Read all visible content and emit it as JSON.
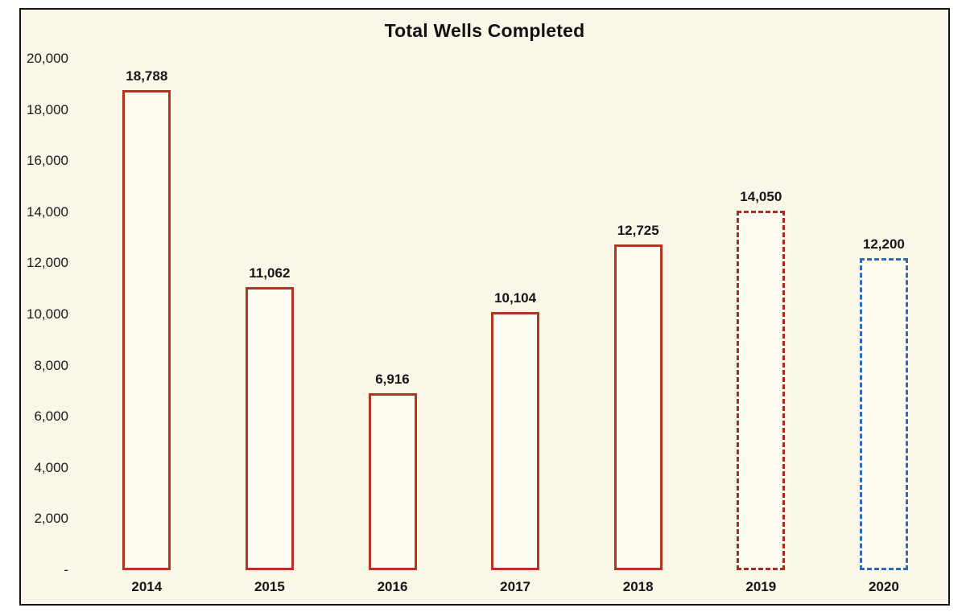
{
  "colors": {
    "page_background": "#FFFFFF",
    "chart_background": "#FAF6E8",
    "bar_fill": "#FFFDF2",
    "frame_border": "#141414",
    "text": "#1A1A1A",
    "solid_red": "#B23422",
    "dashed_red": "#A52E20",
    "dashed_blue": "#2E6DB5"
  },
  "chart_data": {
    "type": "bar",
    "title": "Total Wells Completed",
    "xlabel": "",
    "ylabel": "",
    "categories": [
      "2014",
      "2015",
      "2016",
      "2017",
      "2018",
      "2019",
      "2020"
    ],
    "values": [
      18788,
      11062,
      6916,
      10104,
      12725,
      14050,
      12200
    ],
    "ylim": [
      0,
      20000
    ],
    "grid": false,
    "legend": "none",
    "y_ticks": [
      {
        "value": 20000,
        "label": "20,000"
      },
      {
        "value": 18000,
        "label": "18,000"
      },
      {
        "value": 16000,
        "label": "16,000"
      },
      {
        "value": 14000,
        "label": "14,000"
      },
      {
        "value": 12000,
        "label": "12,000"
      },
      {
        "value": 10000,
        "label": "10,000"
      },
      {
        "value": 8000,
        "label": "8,000"
      },
      {
        "value": 6000,
        "label": "6,000"
      },
      {
        "value": 4000,
        "label": "4,000"
      },
      {
        "value": 2000,
        "label": "2,000"
      },
      {
        "value": 0,
        "label": "-"
      }
    ],
    "bars": [
      {
        "category": "2014",
        "value": 18788,
        "label": "18,788",
        "outline_color": "#B23422",
        "line_style": "solid"
      },
      {
        "category": "2015",
        "value": 11062,
        "label": "11,062",
        "outline_color": "#B23422",
        "line_style": "solid"
      },
      {
        "category": "2016",
        "value": 6916,
        "label": "6,916",
        "outline_color": "#B23422",
        "line_style": "solid"
      },
      {
        "category": "2017",
        "value": 10104,
        "label": "10,104",
        "outline_color": "#B23422",
        "line_style": "solid"
      },
      {
        "category": "2018",
        "value": 12725,
        "label": "12,725",
        "outline_color": "#B23422",
        "line_style": "solid"
      },
      {
        "category": "2019",
        "value": 14050,
        "label": "14,050",
        "outline_color": "#A52E20",
        "line_style": "dashed"
      },
      {
        "category": "2020",
        "value": 12200,
        "label": "12,200",
        "outline_color": "#2E6DB5",
        "line_style": "dashed"
      }
    ]
  }
}
